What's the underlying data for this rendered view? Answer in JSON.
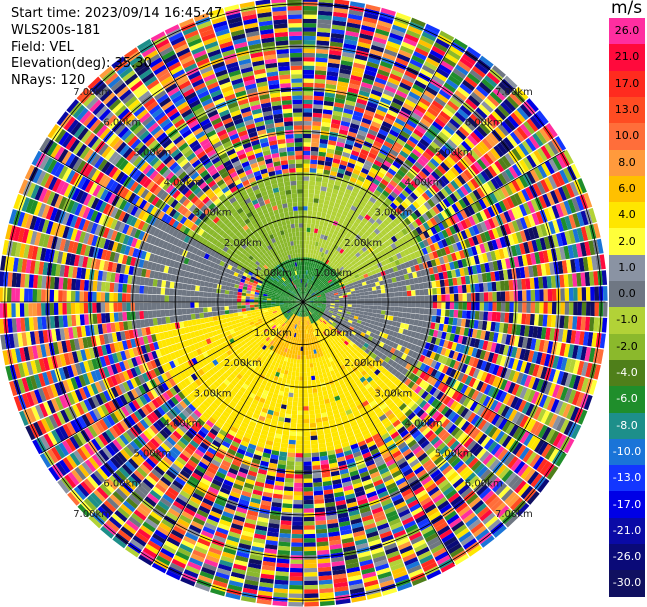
{
  "header": {
    "start_time": "Start time: 2023/09/14 16:45:47",
    "instrument": "WLS200s-181",
    "field": "Field: VEL",
    "elevation": "Elevation(deg): 35.30",
    "nrays": "NRays: 120"
  },
  "colorbar": {
    "unit": "m/s",
    "levels": [
      {
        "label": "26.0",
        "color": "#ff2ea0"
      },
      {
        "label": "21.0",
        "color": "#ff0a3c"
      },
      {
        "label": "17.0",
        "color": "#ff2b1f"
      },
      {
        "label": "13.0",
        "color": "#ff4c22"
      },
      {
        "label": "10.0",
        "color": "#ff6e3a"
      },
      {
        "label": "8.0",
        "color": "#ff9a3c"
      },
      {
        "label": "6.0",
        "color": "#ffc000"
      },
      {
        "label": "4.0",
        "color": "#ffe600"
      },
      {
        "label": "2.0",
        "color": "#ffff3a"
      },
      {
        "label": "1.0",
        "color": "#8a93a3"
      },
      {
        "label": "0.0",
        "color": "#6f7783"
      },
      {
        "label": "-1.0",
        "color": "#b2d237"
      },
      {
        "label": "-2.0",
        "color": "#8bb92c"
      },
      {
        "label": "-4.0",
        "color": "#4f7f1a"
      },
      {
        "label": "-6.0",
        "color": "#1f8e2b"
      },
      {
        "label": "-8.0",
        "color": "#1d8f8a"
      },
      {
        "label": "-10.0",
        "color": "#1a74d8"
      },
      {
        "label": "-13.0",
        "color": "#1336ff"
      },
      {
        "label": "-17.0",
        "color": "#0000e6"
      },
      {
        "label": "-21.0",
        "color": "#0a0aa6"
      },
      {
        "label": "-26.0",
        "color": "#0a0a78"
      },
      {
        "label": "-30.0",
        "color": "#101060"
      }
    ]
  },
  "chart_data": {
    "type": "heatmap",
    "subtype": "polar PPI",
    "field": "VEL",
    "unit": "m/s",
    "nrays": 120,
    "elevation_deg": 35.3,
    "range_rings_km": [
      1,
      2,
      3,
      4,
      5,
      6,
      7
    ],
    "range_ring_labels": [
      "1.00km",
      "2.00km",
      "3.00km",
      "4.00km",
      "5.00km",
      "6.00km",
      "7.00km"
    ],
    "max_range_km": 7.1,
    "sectors": [
      {
        "azimuth_deg": [
          300,
          360
        ],
        "range_km": [
          0,
          3
        ],
        "dominant_value": -2.0
      },
      {
        "azimuth_deg": [
          0,
          70
        ],
        "range_km": [
          0,
          3
        ],
        "dominant_value": -1.0
      },
      {
        "azimuth_deg": [
          0,
          360
        ],
        "range_km": [
          0,
          1
        ],
        "dominant_value": -6.0
      },
      {
        "azimuth_deg": [
          70,
          130
        ],
        "range_km": [
          0.5,
          3
        ],
        "dominant_value": 0.0
      },
      {
        "azimuth_deg": [
          130,
          260
        ],
        "range_km": [
          0.5,
          3.5
        ],
        "dominant_value": 4.0
      },
      {
        "azimuth_deg": [
          160,
          220
        ],
        "range_km": [
          0.3,
          1.3
        ],
        "dominant_value": 6.0
      },
      {
        "azimuth_deg": [
          260,
          300
        ],
        "range_km": [
          1.5,
          4
        ],
        "dominant_value": 0.0
      }
    ],
    "outer_region_km": [
      3.5,
      7.1
    ],
    "outer_region_note": "noise"
  }
}
